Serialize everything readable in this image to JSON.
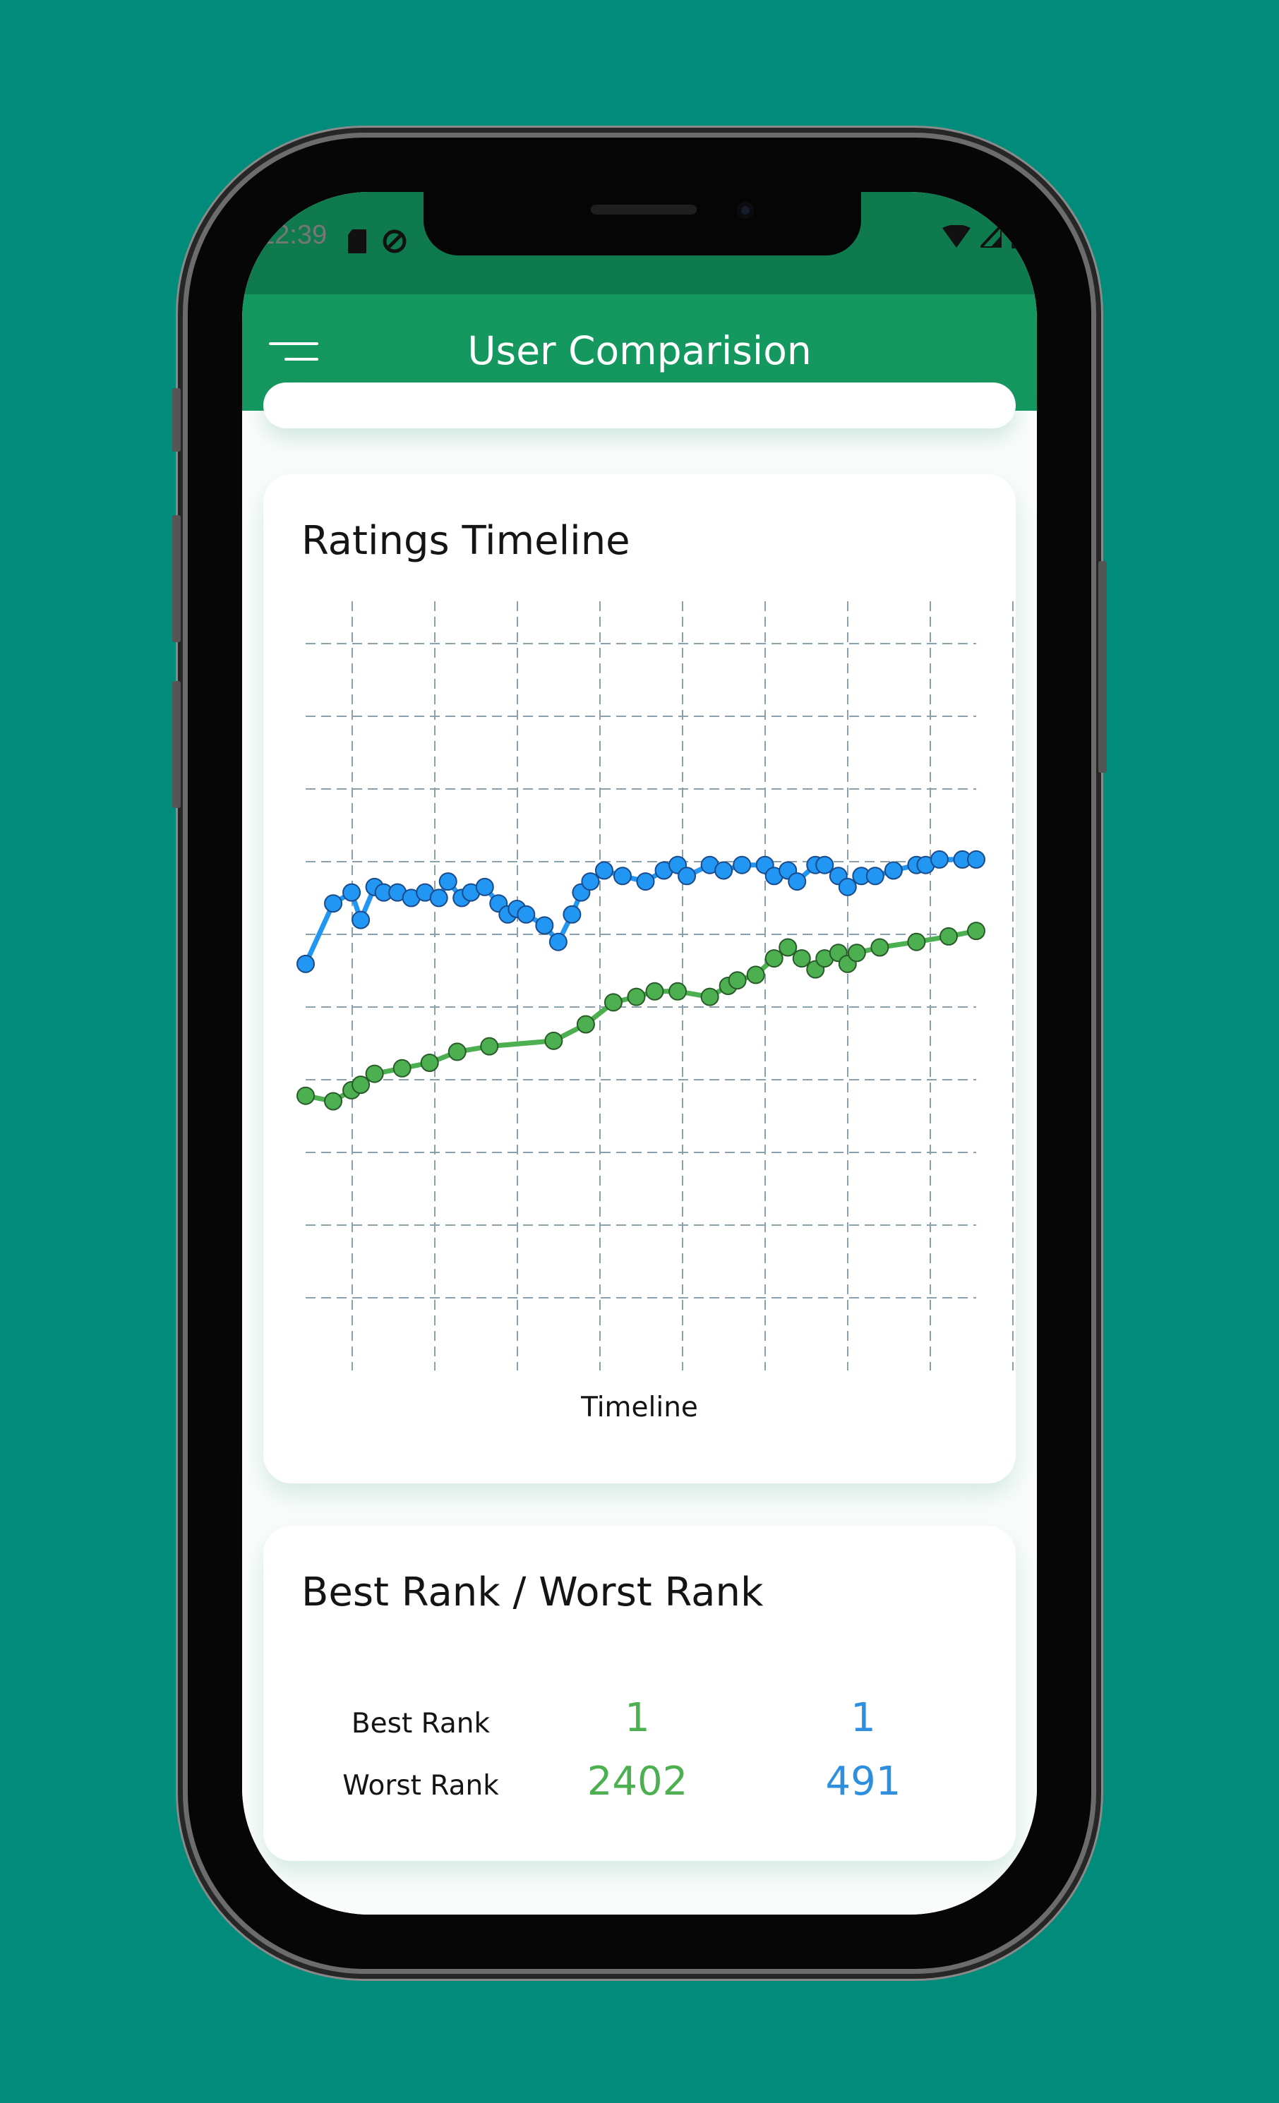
{
  "status": {
    "time": "12:39"
  },
  "appbar": {
    "title": "User Comparision"
  },
  "ratings_card": {
    "title": "Ratings Timeline",
    "xlabel": "Timeline"
  },
  "chart_data": {
    "type": "line",
    "xlabel": "Timeline",
    "ylabel": "",
    "grid": true,
    "x_gridlines": 9,
    "y_gridlines": 10,
    "series": [
      {
        "color": "#2196f3",
        "points": [
          [
            0,
            4.24
          ],
          [
            0.6,
            4.35
          ],
          [
            1.0,
            4.37
          ],
          [
            1.2,
            4.32
          ],
          [
            1.5,
            4.38
          ],
          [
            1.7,
            4.37
          ],
          [
            2.0,
            4.37
          ],
          [
            2.3,
            4.36
          ],
          [
            2.6,
            4.37
          ],
          [
            2.9,
            4.36
          ],
          [
            3.1,
            4.39
          ],
          [
            3.4,
            4.36
          ],
          [
            3.6,
            4.37
          ],
          [
            3.9,
            4.38
          ],
          [
            4.2,
            4.35
          ],
          [
            4.4,
            4.33
          ],
          [
            4.6,
            4.34
          ],
          [
            4.8,
            4.33
          ],
          [
            5.2,
            4.31
          ],
          [
            5.5,
            4.28
          ],
          [
            5.8,
            4.33
          ],
          [
            6.0,
            4.37
          ],
          [
            6.2,
            4.39
          ],
          [
            6.5,
            4.41
          ],
          [
            6.9,
            4.4
          ],
          [
            7.4,
            4.39
          ],
          [
            7.8,
            4.41
          ],
          [
            8.1,
            4.42
          ],
          [
            8.3,
            4.4
          ],
          [
            8.8,
            4.42
          ],
          [
            9.1,
            4.41
          ],
          [
            9.5,
            4.42
          ],
          [
            10.0,
            4.42
          ],
          [
            10.2,
            4.4
          ],
          [
            10.5,
            4.41
          ],
          [
            10.7,
            4.39
          ],
          [
            11.1,
            4.42
          ],
          [
            11.3,
            4.42
          ],
          [
            11.6,
            4.4
          ],
          [
            11.8,
            4.38
          ],
          [
            12.1,
            4.4
          ],
          [
            12.4,
            4.4
          ],
          [
            12.8,
            4.41
          ],
          [
            13.3,
            4.42
          ],
          [
            13.5,
            4.42
          ],
          [
            13.8,
            4.43
          ],
          [
            14.3,
            4.43
          ],
          [
            14.6,
            4.43
          ]
        ]
      },
      {
        "color": "#4caf50",
        "points": [
          [
            0,
            4.0
          ],
          [
            0.6,
            3.99
          ],
          [
            1.0,
            4.01
          ],
          [
            1.2,
            4.02
          ],
          [
            1.5,
            4.04
          ],
          [
            2.1,
            4.05
          ],
          [
            2.7,
            4.06
          ],
          [
            3.3,
            4.08
          ],
          [
            4.0,
            4.09
          ],
          [
            5.4,
            4.1
          ],
          [
            6.1,
            4.13
          ],
          [
            6.7,
            4.17
          ],
          [
            7.2,
            4.18
          ],
          [
            7.6,
            4.19
          ],
          [
            8.1,
            4.19
          ],
          [
            8.8,
            4.18
          ],
          [
            9.2,
            4.2
          ],
          [
            9.4,
            4.21
          ],
          [
            9.8,
            4.22
          ],
          [
            10.2,
            4.25
          ],
          [
            10.5,
            4.27
          ],
          [
            10.8,
            4.25
          ],
          [
            11.1,
            4.23
          ],
          [
            11.3,
            4.25
          ],
          [
            11.6,
            4.26
          ],
          [
            11.8,
            4.24
          ],
          [
            12.0,
            4.26
          ],
          [
            12.5,
            4.27
          ],
          [
            13.3,
            4.28
          ],
          [
            14.0,
            4.29
          ],
          [
            14.6,
            4.3
          ]
        ]
      }
    ]
  },
  "rank_card": {
    "title": "Best Rank / Worst Rank",
    "best_label": "Best Rank",
    "worst_label": "Worst Rank",
    "user1": {
      "best": "1",
      "worst": "2402",
      "color": "#4caf50"
    },
    "user2": {
      "best": "1",
      "worst": "491",
      "color": "#2f8fdf"
    }
  }
}
